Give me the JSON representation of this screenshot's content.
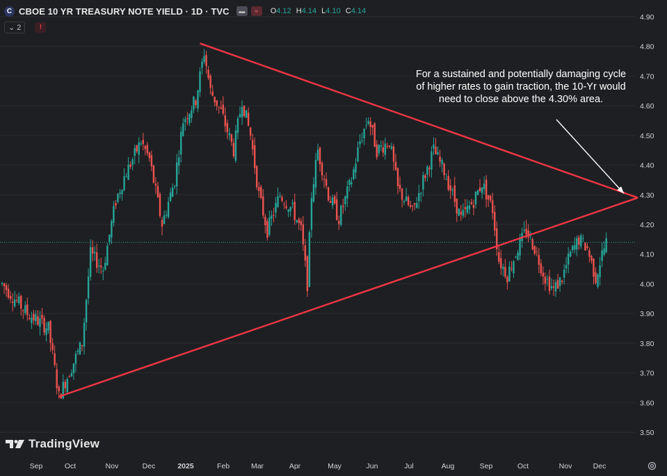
{
  "header": {
    "symbol_badge": "C",
    "title": "CBOE 10 YR TREASURY NOTE YIELD · 1D · TVC",
    "ohlc": [
      {
        "key": "O",
        "value": "4.12"
      },
      {
        "key": "H",
        "value": "4.14"
      },
      {
        "key": "L",
        "value": "4.10"
      },
      {
        "key": "C",
        "value": "4.14"
      }
    ],
    "indicator_count": "2",
    "alert_icon_text": "!"
  },
  "annotation": {
    "text": "For a sustained and potentially damaging cycle of higher rates to gain traction, the 10-Yr would need to close above the 4.30% area."
  },
  "brand": {
    "name": "TradingView"
  },
  "colors": {
    "background": "#1e1f22",
    "up": "#26a69a",
    "down": "#ef5350",
    "trendline": "#f23645",
    "axis_text": "#d1d4dc",
    "grid": "#2a2c31"
  },
  "chart_data": {
    "type": "candlestick",
    "title": "CBOE 10 YR TREASURY NOTE YIELD",
    "interval": "1D",
    "ylim": [
      3.47,
      4.93
    ],
    "y_ticks": [
      "4.90",
      "4.80",
      "4.70",
      "4.60",
      "4.50",
      "4.40",
      "4.30",
      "4.20",
      "4.10",
      "4.00",
      "3.90",
      "3.80",
      "3.70",
      "3.60",
      "3.50"
    ],
    "x_labels": [
      "Sep",
      "Oct",
      "Nov",
      "Dec",
      "2025",
      "Feb",
      "Mar",
      "Apr",
      "May",
      "Jun",
      "Jul",
      "Aug",
      "Sep",
      "Oct",
      "Nov",
      "Dec"
    ],
    "last_price_line": 4.14,
    "keypoints": [
      {
        "d": 0,
        "v": 4.0
      },
      {
        "d": 12,
        "v": 3.9
      },
      {
        "d": 22,
        "v": 3.85
      },
      {
        "d": 27,
        "v": 3.62
      },
      {
        "d": 33,
        "v": 3.72
      },
      {
        "d": 38,
        "v": 3.8
      },
      {
        "d": 42,
        "v": 4.1
      },
      {
        "d": 48,
        "v": 4.05
      },
      {
        "d": 54,
        "v": 4.28
      },
      {
        "d": 58,
        "v": 4.36
      },
      {
        "d": 66,
        "v": 4.48
      },
      {
        "d": 70,
        "v": 4.42
      },
      {
        "d": 76,
        "v": 4.2
      },
      {
        "d": 82,
        "v": 4.35
      },
      {
        "d": 86,
        "v": 4.55
      },
      {
        "d": 92,
        "v": 4.62
      },
      {
        "d": 96,
        "v": 4.78
      },
      {
        "d": 99,
        "v": 4.65
      },
      {
        "d": 104,
        "v": 4.58
      },
      {
        "d": 110,
        "v": 4.45
      },
      {
        "d": 114,
        "v": 4.62
      },
      {
        "d": 118,
        "v": 4.5
      },
      {
        "d": 122,
        "v": 4.3
      },
      {
        "d": 126,
        "v": 4.18
      },
      {
        "d": 132,
        "v": 4.3
      },
      {
        "d": 138,
        "v": 4.25
      },
      {
        "d": 142,
        "v": 4.18
      },
      {
        "d": 145,
        "v": 4.0
      },
      {
        "d": 147,
        "v": 4.3
      },
      {
        "d": 150,
        "v": 4.45
      },
      {
        "d": 155,
        "v": 4.3
      },
      {
        "d": 160,
        "v": 4.22
      },
      {
        "d": 166,
        "v": 4.35
      },
      {
        "d": 170,
        "v": 4.48
      },
      {
        "d": 174,
        "v": 4.56
      },
      {
        "d": 178,
        "v": 4.45
      },
      {
        "d": 184,
        "v": 4.48
      },
      {
        "d": 188,
        "v": 4.32
      },
      {
        "d": 195,
        "v": 4.24
      },
      {
        "d": 200,
        "v": 4.35
      },
      {
        "d": 205,
        "v": 4.45
      },
      {
        "d": 210,
        "v": 4.38
      },
      {
        "d": 214,
        "v": 4.3
      },
      {
        "d": 218,
        "v": 4.22
      },
      {
        "d": 224,
        "v": 4.28
      },
      {
        "d": 228,
        "v": 4.34
      },
      {
        "d": 233,
        "v": 4.25
      },
      {
        "d": 236,
        "v": 4.08
      },
      {
        "d": 240,
        "v": 4.03
      },
      {
        "d": 245,
        "v": 4.12
      },
      {
        "d": 249,
        "v": 4.18
      },
      {
        "d": 253,
        "v": 4.12
      },
      {
        "d": 258,
        "v": 4.02
      },
      {
        "d": 262,
        "v": 3.98
      },
      {
        "d": 266,
        "v": 4.02
      },
      {
        "d": 270,
        "v": 4.1
      },
      {
        "d": 274,
        "v": 4.15
      },
      {
        "d": 278,
        "v": 4.12
      },
      {
        "d": 282,
        "v": 4.02
      },
      {
        "d": 285,
        "v": 4.1
      },
      {
        "d": 287,
        "v": 4.14
      }
    ],
    "trendlines": [
      {
        "name": "upper-trendline",
        "from": {
          "d": 94,
          "v": 4.81
        },
        "to": {
          "d": 302,
          "v": 4.29
        }
      },
      {
        "name": "lower-trendline",
        "from": {
          "d": 27,
          "v": 3.62
        },
        "to": {
          "d": 302,
          "v": 4.29
        }
      }
    ],
    "annotation_arrow": {
      "from_text": "above the 4.30% area",
      "points_to": {
        "d": 298,
        "v": 4.3
      }
    }
  }
}
